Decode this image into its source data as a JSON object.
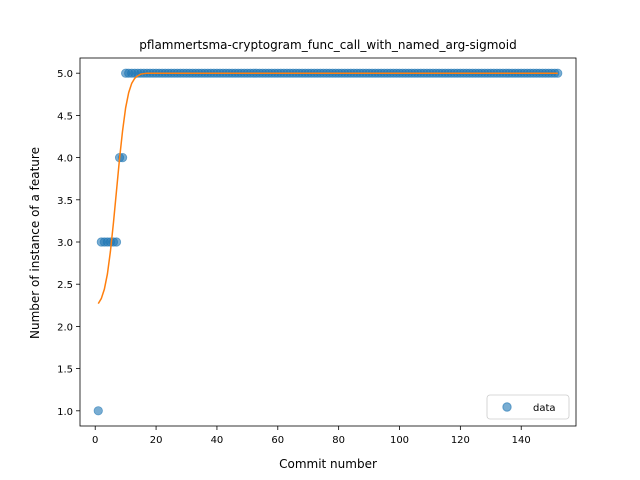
{
  "chart_data": {
    "type": "scatter",
    "title": "pflammertsma-cryptogram_func_call_with_named_arg-sigmoid",
    "xlabel": "Commit number",
    "ylabel": "Number of instance of a feature",
    "xlim": [
      -5,
      158
    ],
    "ylim": [
      0.82,
      5.18
    ],
    "xticks": [
      0,
      20,
      40,
      60,
      80,
      100,
      120,
      140
    ],
    "yticks": [
      1.0,
      1.5,
      2.0,
      2.5,
      3.0,
      3.5,
      4.0,
      4.5,
      5.0
    ],
    "ytick_labels": [
      "1.0",
      "1.5",
      "2.0",
      "2.5",
      "3.0",
      "3.5",
      "4.0",
      "4.5",
      "5.0"
    ],
    "legend": {
      "position": "lower-right",
      "entries": [
        "data"
      ]
    },
    "colors": {
      "data": "#1f77b4",
      "fit": "#ff7f0e"
    },
    "series": [
      {
        "name": "data",
        "kind": "scatter",
        "points": [
          [
            1,
            1
          ],
          [
            2,
            3
          ],
          [
            3,
            3
          ],
          [
            4,
            3
          ],
          [
            5,
            3
          ],
          [
            6,
            3
          ],
          [
            7,
            3
          ],
          [
            8,
            4
          ],
          [
            9,
            4
          ],
          [
            10,
            5
          ],
          [
            11,
            5
          ],
          [
            12,
            5
          ],
          [
            13,
            5
          ],
          [
            14,
            5
          ],
          [
            15,
            5
          ],
          [
            16,
            5
          ],
          [
            17,
            5
          ],
          [
            18,
            5
          ],
          [
            19,
            5
          ],
          [
            20,
            5
          ],
          [
            21,
            5
          ],
          [
            22,
            5
          ],
          [
            23,
            5
          ],
          [
            24,
            5
          ],
          [
            25,
            5
          ],
          [
            26,
            5
          ],
          [
            27,
            5
          ],
          [
            28,
            5
          ],
          [
            29,
            5
          ],
          [
            30,
            5
          ],
          [
            31,
            5
          ],
          [
            32,
            5
          ],
          [
            33,
            5
          ],
          [
            34,
            5
          ],
          [
            35,
            5
          ],
          [
            36,
            5
          ],
          [
            37,
            5
          ],
          [
            38,
            5
          ],
          [
            39,
            5
          ],
          [
            40,
            5
          ],
          [
            41,
            5
          ],
          [
            42,
            5
          ],
          [
            43,
            5
          ],
          [
            44,
            5
          ],
          [
            45,
            5
          ],
          [
            46,
            5
          ],
          [
            47,
            5
          ],
          [
            48,
            5
          ],
          [
            49,
            5
          ],
          [
            50,
            5
          ],
          [
            51,
            5
          ],
          [
            52,
            5
          ],
          [
            53,
            5
          ],
          [
            54,
            5
          ],
          [
            55,
            5
          ],
          [
            56,
            5
          ],
          [
            57,
            5
          ],
          [
            58,
            5
          ],
          [
            59,
            5
          ],
          [
            60,
            5
          ],
          [
            61,
            5
          ],
          [
            62,
            5
          ],
          [
            63,
            5
          ],
          [
            64,
            5
          ],
          [
            65,
            5
          ],
          [
            66,
            5
          ],
          [
            67,
            5
          ],
          [
            68,
            5
          ],
          [
            69,
            5
          ],
          [
            70,
            5
          ],
          [
            71,
            5
          ],
          [
            72,
            5
          ],
          [
            73,
            5
          ],
          [
            74,
            5
          ],
          [
            75,
            5
          ],
          [
            76,
            5
          ],
          [
            77,
            5
          ],
          [
            78,
            5
          ],
          [
            79,
            5
          ],
          [
            80,
            5
          ],
          [
            81,
            5
          ],
          [
            82,
            5
          ],
          [
            83,
            5
          ],
          [
            84,
            5
          ],
          [
            85,
            5
          ],
          [
            86,
            5
          ],
          [
            87,
            5
          ],
          [
            88,
            5
          ],
          [
            89,
            5
          ],
          [
            90,
            5
          ],
          [
            91,
            5
          ],
          [
            92,
            5
          ],
          [
            93,
            5
          ],
          [
            94,
            5
          ],
          [
            95,
            5
          ],
          [
            96,
            5
          ],
          [
            97,
            5
          ],
          [
            98,
            5
          ],
          [
            99,
            5
          ],
          [
            100,
            5
          ],
          [
            101,
            5
          ],
          [
            102,
            5
          ],
          [
            103,
            5
          ],
          [
            104,
            5
          ],
          [
            105,
            5
          ],
          [
            106,
            5
          ],
          [
            107,
            5
          ],
          [
            108,
            5
          ],
          [
            109,
            5
          ],
          [
            110,
            5
          ],
          [
            111,
            5
          ],
          [
            112,
            5
          ],
          [
            113,
            5
          ],
          [
            114,
            5
          ],
          [
            115,
            5
          ],
          [
            116,
            5
          ],
          [
            117,
            5
          ],
          [
            118,
            5
          ],
          [
            119,
            5
          ],
          [
            120,
            5
          ],
          [
            121,
            5
          ],
          [
            122,
            5
          ],
          [
            123,
            5
          ],
          [
            124,
            5
          ],
          [
            125,
            5
          ],
          [
            126,
            5
          ],
          [
            127,
            5
          ],
          [
            128,
            5
          ],
          [
            129,
            5
          ],
          [
            130,
            5
          ],
          [
            131,
            5
          ],
          [
            132,
            5
          ],
          [
            133,
            5
          ],
          [
            134,
            5
          ],
          [
            135,
            5
          ],
          [
            136,
            5
          ],
          [
            137,
            5
          ],
          [
            138,
            5
          ],
          [
            139,
            5
          ],
          [
            140,
            5
          ],
          [
            141,
            5
          ],
          [
            142,
            5
          ],
          [
            143,
            5
          ],
          [
            144,
            5
          ],
          [
            145,
            5
          ],
          [
            146,
            5
          ],
          [
            147,
            5
          ],
          [
            148,
            5
          ],
          [
            149,
            5
          ],
          [
            150,
            5
          ],
          [
            151,
            5
          ],
          [
            152,
            5
          ]
        ]
      },
      {
        "kind": "line",
        "points": [
          [
            1,
            2.27
          ],
          [
            2,
            2.33
          ],
          [
            3,
            2.44
          ],
          [
            4,
            2.62
          ],
          [
            5,
            2.89
          ],
          [
            6,
            3.23
          ],
          [
            7,
            3.61
          ],
          [
            8,
            3.99
          ],
          [
            9,
            4.32
          ],
          [
            10,
            4.59
          ],
          [
            11,
            4.77
          ],
          [
            12,
            4.88
          ],
          [
            13,
            4.94
          ],
          [
            14,
            4.97
          ],
          [
            15,
            4.99
          ],
          [
            17,
            5.0
          ],
          [
            20,
            5.0
          ],
          [
            152,
            5.0
          ]
        ]
      }
    ]
  }
}
